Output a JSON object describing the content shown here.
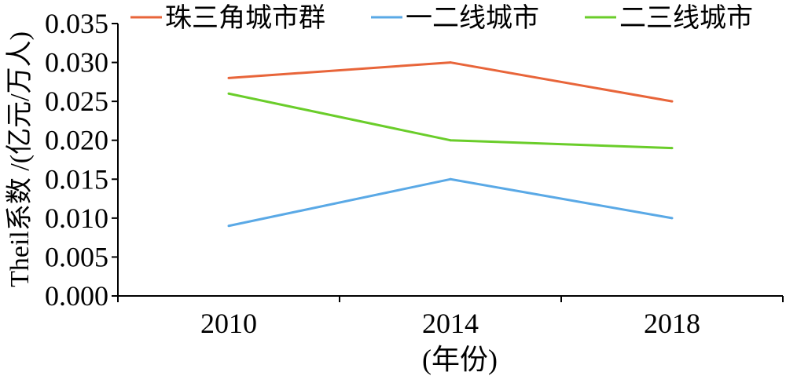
{
  "chart_data": {
    "type": "line",
    "title": "",
    "xlabel": "(年份)",
    "ylabel": "Theil系数 /(亿元/万人)",
    "categories": [
      "2010",
      "2014",
      "2018"
    ],
    "ylim": [
      0,
      0.035
    ],
    "yticks": [
      "0.000",
      "0.005",
      "0.010",
      "0.015",
      "0.020",
      "0.025",
      "0.030",
      "0.035"
    ],
    "grid": false,
    "legend_position": "top",
    "series": [
      {
        "name": "珠三角城市群",
        "color": "#E8653A",
        "values": [
          0.028,
          0.03,
          0.025
        ]
      },
      {
        "name": "一二线城市",
        "color": "#5AA9E6",
        "values": [
          0.009,
          0.015,
          0.01
        ]
      },
      {
        "name": "二三线城市",
        "color": "#6ACD2A",
        "values": [
          0.026,
          0.02,
          0.019
        ]
      }
    ]
  }
}
